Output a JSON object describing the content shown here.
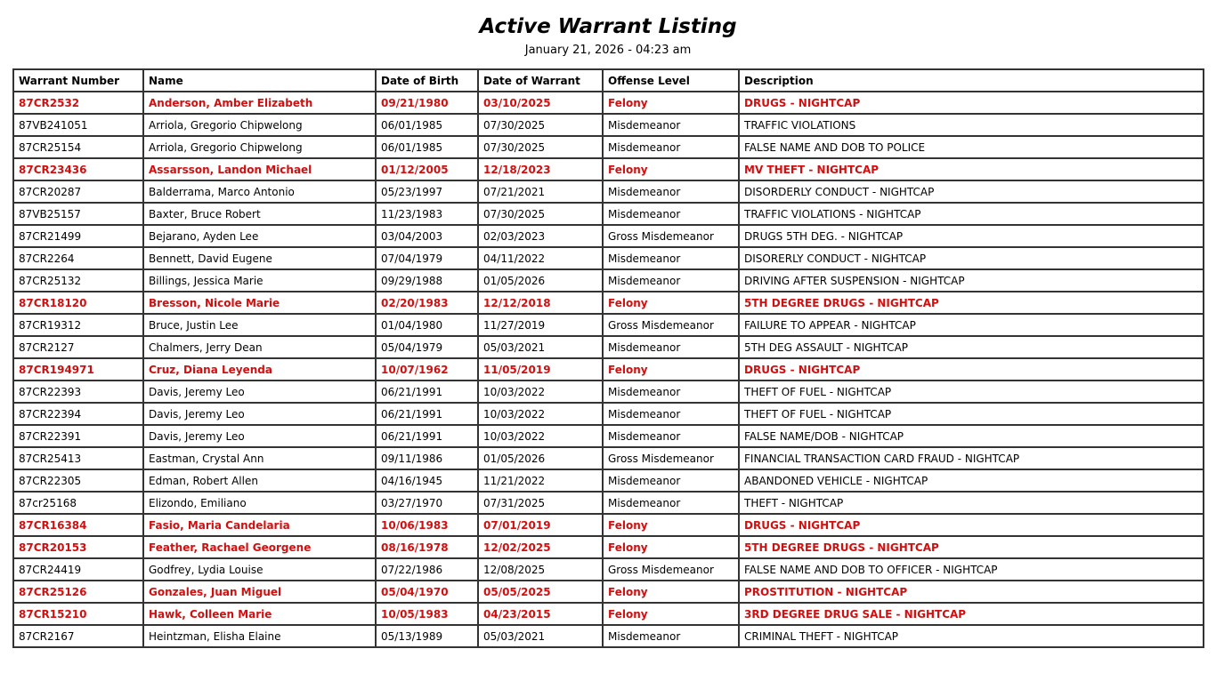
{
  "header": {
    "title": "Active Warrant Listing",
    "timestamp": "January 21, 2026 - 04:23 am"
  },
  "colors": {
    "felony": "#d01010",
    "default": "#000000"
  },
  "table": {
    "columns": [
      "Warrant Number",
      "Name",
      "Date of Birth",
      "Date of Warrant",
      "Offense Level",
      "Description"
    ],
    "rows": [
      [
        "87CR2532",
        "Anderson, Amber Elizabeth",
        "09/21/1980",
        "03/10/2025",
        "Felony",
        "DRUGS - NIGHTCAP"
      ],
      [
        "87VB241051",
        "Arriola, Gregorio Chipwelong",
        "06/01/1985",
        "07/30/2025",
        "Misdemeanor",
        "TRAFFIC VIOLATIONS"
      ],
      [
        "87CR25154",
        "Arriola, Gregorio Chipwelong",
        "06/01/1985",
        "07/30/2025",
        "Misdemeanor",
        "FALSE NAME AND DOB TO POLICE"
      ],
      [
        "87CR23436",
        "Assarsson, Landon Michael",
        "01/12/2005",
        "12/18/2023",
        "Felony",
        "MV THEFT - NIGHTCAP"
      ],
      [
        "87CR20287",
        "Balderrama, Marco Antonio",
        "05/23/1997",
        "07/21/2021",
        "Misdemeanor",
        "DISORDERLY CONDUCT - NIGHTCAP"
      ],
      [
        "87VB25157",
        "Baxter, Bruce Robert",
        "11/23/1983",
        "07/30/2025",
        "Misdemeanor",
        "TRAFFIC VIOLATIONS - NIGHTCAP"
      ],
      [
        "87CR21499",
        "Bejarano, Ayden Lee",
        "03/04/2003",
        "02/03/2023",
        "Gross Misdemeanor",
        "DRUGS 5TH DEG. - NIGHTCAP"
      ],
      [
        "87CR2264",
        "Bennett, David Eugene",
        "07/04/1979",
        "04/11/2022",
        "Misdemeanor",
        "DISORERLY CONDUCT - NIGHTCAP"
      ],
      [
        "87CR25132",
        "Billings, Jessica Marie",
        "09/29/1988",
        "01/05/2026",
        "Misdemeanor",
        "DRIVING AFTER SUSPENSION - NIGHTCAP"
      ],
      [
        "87CR18120",
        "Bresson, Nicole Marie",
        "02/20/1983",
        "12/12/2018",
        "Felony",
        "5TH DEGREE DRUGS - NIGHTCAP"
      ],
      [
        "87CR19312",
        "Bruce, Justin Lee",
        "01/04/1980",
        "11/27/2019",
        "Gross Misdemeanor",
        "FAILURE TO APPEAR - NIGHTCAP"
      ],
      [
        "87CR2127",
        "Chalmers, Jerry Dean",
        "05/04/1979",
        "05/03/2021",
        "Misdemeanor",
        "5TH DEG ASSAULT - NIGHTCAP"
      ],
      [
        "87CR194971",
        "Cruz, Diana Leyenda",
        "10/07/1962",
        "11/05/2019",
        "Felony",
        "DRUGS - NIGHTCAP"
      ],
      [
        "87CR22393",
        "Davis, Jeremy Leo",
        "06/21/1991",
        "10/03/2022",
        "Misdemeanor",
        "THEFT OF FUEL - NIGHTCAP"
      ],
      [
        "87CR22394",
        "Davis, Jeremy Leo",
        "06/21/1991",
        "10/03/2022",
        "Misdemeanor",
        "THEFT OF FUEL - NIGHTCAP"
      ],
      [
        "87CR22391",
        "Davis, Jeremy Leo",
        "06/21/1991",
        "10/03/2022",
        "Misdemeanor",
        "FALSE NAME/DOB - NIGHTCAP"
      ],
      [
        "87CR25413",
        "Eastman, Crystal Ann",
        "09/11/1986",
        "01/05/2026",
        "Gross Misdemeanor",
        "FINANCIAL TRANSACTION CARD FRAUD - NIGHTCAP"
      ],
      [
        "87CR22305",
        "Edman, Robert Allen",
        "04/16/1945",
        "11/21/2022",
        "Misdemeanor",
        "ABANDONED VEHICLE - NIGHTCAP"
      ],
      [
        "87cr25168",
        "Elizondo, Emiliano",
        "03/27/1970",
        "07/31/2025",
        "Misdemeanor",
        "THEFT - NIGHTCAP"
      ],
      [
        "87CR16384",
        "Fasio, Maria Candelaria",
        "10/06/1983",
        "07/01/2019",
        "Felony",
        "DRUGS - NIGHTCAP"
      ],
      [
        "87CR20153",
        "Feather, Rachael Georgene",
        "08/16/1978",
        "12/02/2025",
        "Felony",
        "5TH DEGREE DRUGS - NIGHTCAP"
      ],
      [
        "87CR24419",
        "Godfrey, Lydia Louise",
        "07/22/1986",
        "12/08/2025",
        "Gross Misdemeanor",
        "FALSE NAME AND DOB TO OFFICER - NIGHTCAP"
      ],
      [
        "87CR25126",
        "Gonzales, Juan Miguel",
        "05/04/1970",
        "05/05/2025",
        "Felony",
        "PROSTITUTION - NIGHTCAP"
      ],
      [
        "87CR15210",
        "Hawk, Colleen Marie",
        "10/05/1983",
        "04/23/2015",
        "Felony",
        "3RD DEGREE DRUG SALE - NIGHTCAP"
      ],
      [
        "87CR2167",
        "Heintzman, Elisha Elaine",
        "05/13/1989",
        "05/03/2021",
        "Misdemeanor",
        "CRIMINAL THEFT - NIGHTCAP"
      ]
    ]
  }
}
